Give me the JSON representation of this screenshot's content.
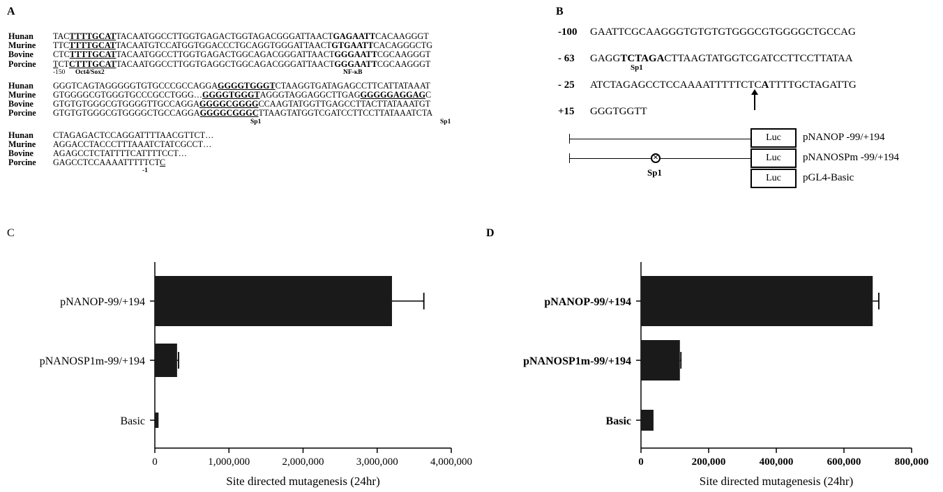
{
  "panels": {
    "a": "A",
    "b": "B",
    "c": "C",
    "d": "D"
  },
  "panel_a": {
    "block1": [
      {
        "species": "Hunan",
        "segs": [
          {
            "t": "TAC"
          },
          {
            "t": "TTTTGCAT",
            "s": "bu"
          },
          {
            "t": "TACAATGGCCTTGGTGAGACTGGTAGACGGGATTAACT"
          },
          {
            "t": "GAGAATT",
            "s": "b"
          },
          {
            "t": "CACAAGGGT"
          }
        ]
      },
      {
        "species": "Murine",
        "segs": [
          {
            "t": "TTC"
          },
          {
            "t": "TTTTGCAT",
            "s": "bu"
          },
          {
            "t": "TACAATGTCCATGGTGGACCCTGCAGGTGGGATTAACT"
          },
          {
            "t": "GTGAATT",
            "s": "b"
          },
          {
            "t": "CACAGGGCTG"
          }
        ]
      },
      {
        "species": "Bovine",
        "segs": [
          {
            "t": "CTC"
          },
          {
            "t": "TTTTGCAT",
            "s": "bu"
          },
          {
            "t": "TACAATGGCCTTGGTGAGACTGGCAGACGGGATTAACT"
          },
          {
            "t": "GGGAATT",
            "s": "b"
          },
          {
            "t": "CGCAAGGGT"
          }
        ]
      },
      {
        "species": "Porcine",
        "segs": [
          {
            "t": "T",
            "s": "u"
          },
          {
            "t": "CT"
          },
          {
            "t": "CTTTGCAT",
            "s": "bu"
          },
          {
            "t": "TACAATGGCCTTGGTGAGGCTGGCAGACGGGATTAACT"
          },
          {
            "t": "GGGAATT",
            "s": "b"
          },
          {
            "t": "CGCAAGGGT"
          }
        ]
      }
    ],
    "block1_annot": {
      "pos": "-150",
      "oct": "Oct4/Sox2",
      "nfkb": "NF-κB"
    },
    "block2": [
      {
        "species": "Hunan",
        "segs": [
          {
            "t": "GGGTCAGTAGGGGGTGTGCCCGCCAGGA"
          },
          {
            "t": "GGGGTGGGT",
            "s": "bu"
          },
          {
            "t": "CTAAGGTGATAGAGCCTTCATTATAAAT"
          }
        ]
      },
      {
        "species": "Murine",
        "segs": [
          {
            "t": "GTGGGGCGTGGGTGCCCGCCTGGG…"
          },
          {
            "t": "GGGGTGGGT",
            "s": "bu"
          },
          {
            "t": "AGGGTAGGAGGCTTGAG"
          },
          {
            "t": "GGGGGAGGAG",
            "s": "bu"
          },
          {
            "t": "C"
          }
        ]
      },
      {
        "species": "Bovine",
        "segs": [
          {
            "t": "GTGTGTGGGCGTGGGGTTGCCAGGA"
          },
          {
            "t": "GGGGCGGGG",
            "s": "bu"
          },
          {
            "t": "CCAAGTATGGTTGAGCCTTACTTATAAATGT"
          }
        ]
      },
      {
        "species": "Porcine",
        "segs": [
          {
            "t": "GTGTGTGGGCGTGGGGCTGCCAGGA"
          },
          {
            "t": "GGGGCGGGC",
            "s": "bu"
          },
          {
            "t": "TTAAGTATGGTCGATCCTTCCTTATAAATCTA"
          }
        ]
      }
    ],
    "block2_annot": {
      "sp1a": "Sp1",
      "sp1b": "Sp1"
    },
    "block3": [
      {
        "species": "Hunan",
        "segs": [
          {
            "t": "CTAGAGACTCCAGGATTTTAACGTTCT…"
          }
        ]
      },
      {
        "species": "Murine",
        "segs": [
          {
            "t": "AGGACCTACCCTTTAAATCTATCGCCT…"
          }
        ]
      },
      {
        "species": "Bovine",
        "segs": [
          {
            "t": "AGAGCCTCTATTTTCATTTTCCT…"
          }
        ]
      },
      {
        "species": "Porcine",
        "segs": [
          {
            "t": "GAGCCTCCAAAATTTTTCT"
          },
          {
            "t": "C",
            "s": "u"
          }
        ]
      }
    ],
    "block3_annot": {
      "pos": "-1"
    }
  },
  "panel_b": {
    "lines": [
      {
        "pos": "-100",
        "segs": [
          {
            "t": "GAATTCGCAAGGGTGTGTGTGGGCGTGGGGCTGCCAG"
          }
        ]
      },
      {
        "pos": "- 63",
        "segs": [
          {
            "t": "GAGG"
          },
          {
            "t": "TCTAGA",
            "s": "bu"
          },
          {
            "t": "CTTAAGTATGGTCGATCCTTCCTTATAA"
          }
        ]
      },
      {
        "pos": "- 25",
        "segs": [
          {
            "t": "ATCTAGAGCCTCCAAAATTTTTCTC"
          },
          {
            "t": "A",
            "s": "b"
          },
          {
            "t": "TTTTGCTAGATTG"
          }
        ]
      },
      {
        "pos": "+15",
        "segs": [
          {
            "t": "GGGTGGTT"
          }
        ]
      }
    ],
    "sp1_label": "Sp1",
    "mut_symbol": "×",
    "mut_label": "Sp1",
    "luc": "Luc",
    "constructs": [
      "pNANOP -99/+194",
      "pNANOSPm -99/+194",
      "pGL4-Basic"
    ]
  },
  "chart_data": [
    {
      "type": "bar",
      "orientation": "horizontal",
      "categories": [
        "pNANOP-99/+194",
        "pNANOSP1m-99/+194",
        "Basic"
      ],
      "values": [
        3200000,
        300000,
        50000
      ],
      "errors": [
        430000,
        20000,
        5000
      ],
      "xlabel": "Site directed mutagenesis (24hr)",
      "ylabel": "",
      "xlim": [
        0,
        4000000
      ],
      "ticks": [
        "0",
        "1,000,000",
        "2,000,000",
        "3,000,000",
        "4,000,000"
      ],
      "bold_labels": false
    },
    {
      "type": "bar",
      "orientation": "horizontal",
      "categories": [
        "pNANOP-99/+194",
        "pNANOSP1m-99/+194",
        "Basic"
      ],
      "values": [
        685000,
        115000,
        37000
      ],
      "errors": [
        18000,
        3000,
        2000
      ],
      "xlabel": "Site directed mutagenesis (24hr)",
      "ylabel": "",
      "xlim": [
        0,
        800000
      ],
      "ticks": [
        "0",
        "200,000",
        "400,000",
        "600,000",
        "800,000"
      ],
      "bold_labels": true
    }
  ]
}
